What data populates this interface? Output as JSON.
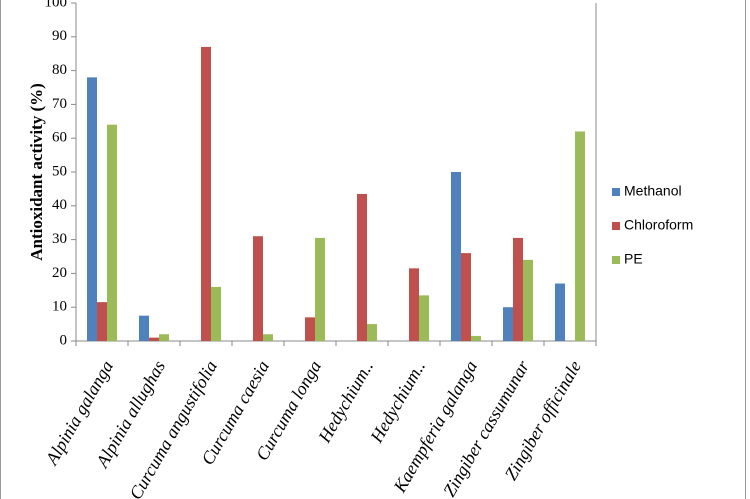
{
  "chart_data": {
    "type": "bar",
    "y_label": "Antioxidant activity (%)",
    "categories": [
      "Alpinia galanga",
      "Alpinia allughas",
      "Curcuma angustifolia",
      "Curcuma caesia",
      "Curcuma longa",
      "Hedychium..",
      "Hedychium..",
      "Kaempferia galanga",
      "Zingiber cassumunar",
      "Zingiber officinale"
    ],
    "series": [
      {
        "name": "Methanol",
        "color": "#4f81bd",
        "values": [
          78,
          7.5,
          null,
          null,
          null,
          null,
          null,
          50,
          10,
          17
        ]
      },
      {
        "name": "Chloroform",
        "color": "#c0504d",
        "values": [
          11.5,
          1,
          87,
          31,
          7,
          43.5,
          21.5,
          26,
          30.5,
          null
        ]
      },
      {
        "name": "PE",
        "color": "#9bbb59",
        "values": [
          64,
          2,
          16,
          2,
          30.5,
          5,
          13.5,
          1.5,
          24,
          62
        ]
      }
    ],
    "ylim": [
      0,
      100
    ],
    "yticks": [
      0,
      10,
      20,
      30,
      40,
      50,
      60,
      70,
      80,
      90,
      100
    ],
    "grid": false,
    "legend": "right"
  }
}
